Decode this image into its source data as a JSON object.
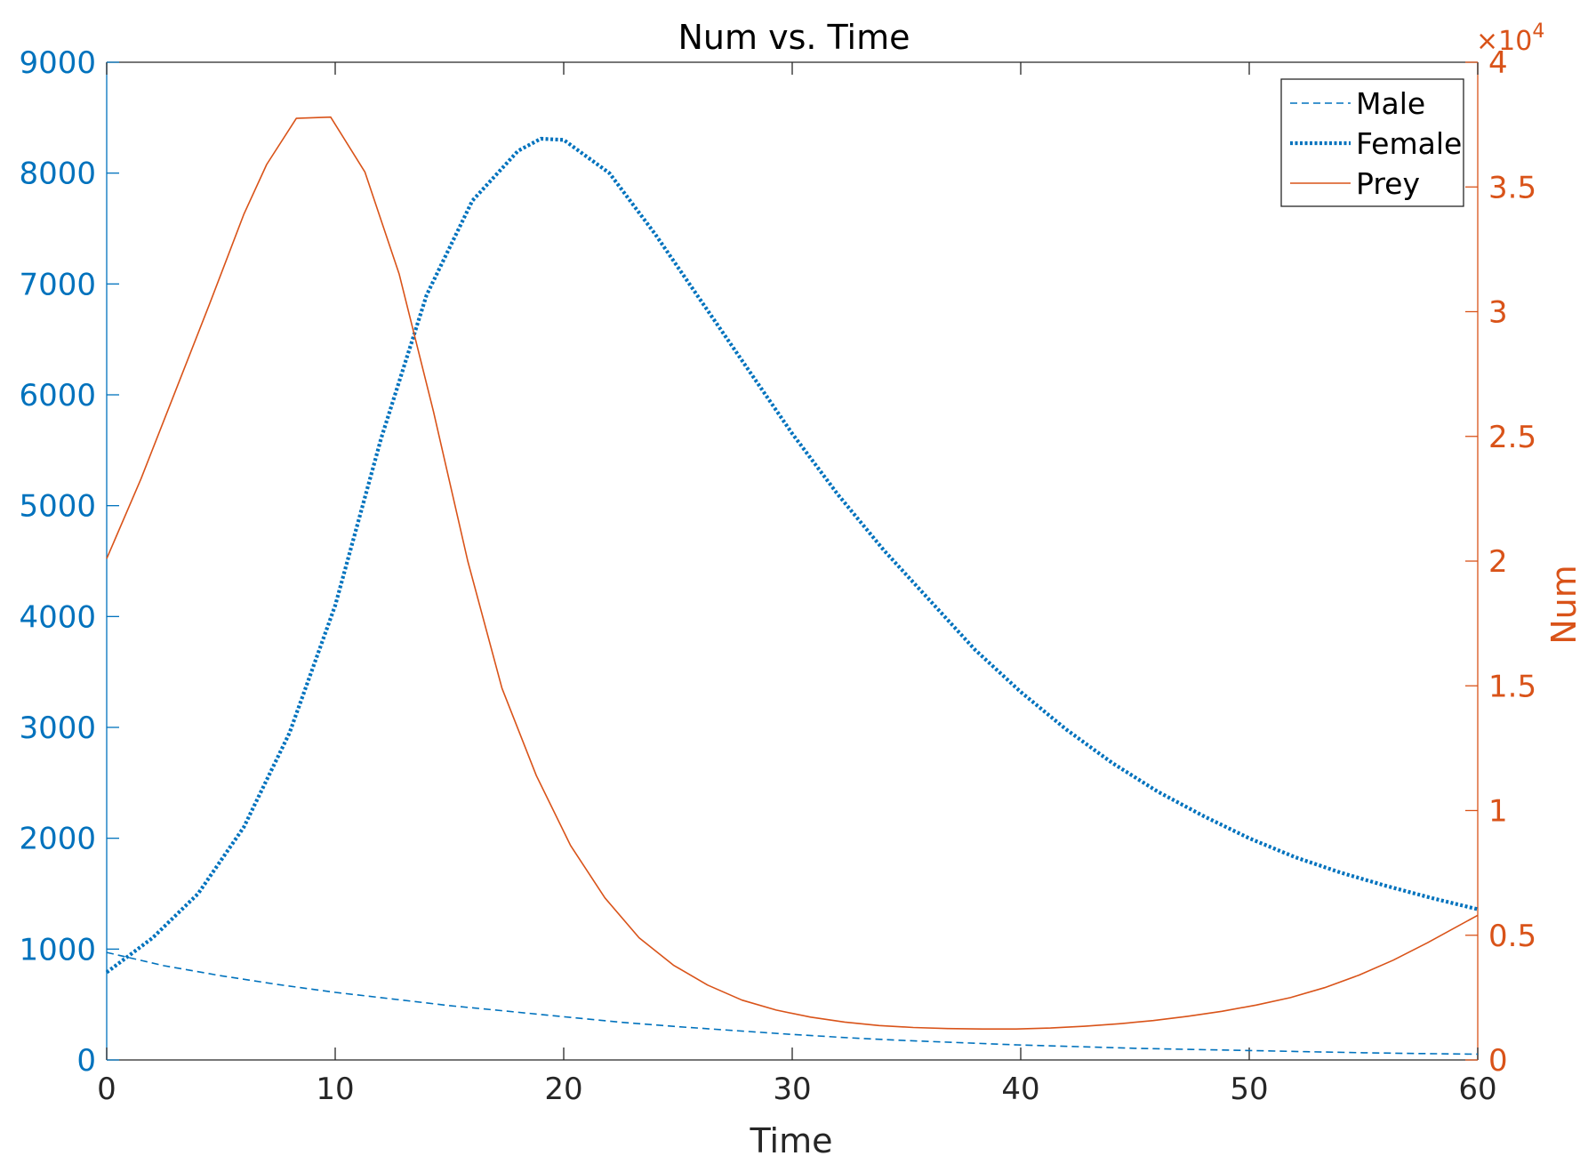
{
  "chart_data": {
    "type": "line",
    "title": "Num vs. Time",
    "xlabel": "Time",
    "ylabel_left": "",
    "ylabel_right": "Num",
    "xlim": [
      0,
      60
    ],
    "ylim_left": [
      0,
      9000
    ],
    "ylim_right": [
      0,
      40000
    ],
    "x_ticks": [
      0,
      10,
      20,
      30,
      40,
      50,
      60
    ],
    "x_tick_labels": [
      "0",
      "10",
      "20",
      "30",
      "40",
      "50",
      "60"
    ],
    "y_left_ticks": [
      0,
      1000,
      2000,
      3000,
      4000,
      5000,
      6000,
      7000,
      8000,
      9000
    ],
    "y_left_tick_labels": [
      "0",
      "1000",
      "2000",
      "3000",
      "4000",
      "5000",
      "6000",
      "7000",
      "8000",
      "9000"
    ],
    "y_right_ticks": [
      0,
      5000,
      10000,
      15000,
      20000,
      25000,
      30000,
      35000,
      40000
    ],
    "y_right_tick_labels": [
      "0",
      "0.5",
      "1",
      "1.5",
      "2",
      "2.5",
      "3",
      "3.5",
      "4"
    ],
    "y_right_exponent_base": "×10",
    "y_right_exponent_power": "4",
    "grid": false,
    "legend_position": "top-right",
    "colors": {
      "left_axis": "#0072BD",
      "right_axis": "#D95319",
      "box": "#262626"
    },
    "series": [
      {
        "name": "Male",
        "axis": "left",
        "style": "dashed",
        "color": "#0072BD",
        "x": [
          0,
          2.5,
          5,
          7.5,
          10,
          12.5,
          15,
          17.5,
          20,
          22.5,
          25,
          27.5,
          30,
          32.5,
          35,
          37.5,
          40,
          42.5,
          45,
          47.5,
          50,
          52.5,
          55,
          57.5,
          60
        ],
        "y": [
          970,
          850,
          760,
          680,
          610,
          550,
          490,
          440,
          390,
          340,
          300,
          265,
          230,
          200,
          175,
          155,
          135,
          120,
          105,
          95,
          85,
          75,
          65,
          58,
          52
        ]
      },
      {
        "name": "Female",
        "axis": "left",
        "style": "dotted",
        "color": "#0072BD",
        "x": [
          0,
          2,
          4,
          6,
          8,
          10,
          12,
          14,
          16,
          18,
          19,
          20,
          22,
          24,
          26,
          28,
          30,
          32,
          34,
          36,
          38,
          40,
          42,
          44,
          46,
          48,
          50,
          52,
          54,
          56,
          58,
          60
        ],
        "y": [
          790,
          1100,
          1500,
          2100,
          2950,
          4100,
          5600,
          6900,
          7750,
          8200,
          8310,
          8300,
          8000,
          7450,
          6850,
          6250,
          5650,
          5100,
          4600,
          4150,
          3700,
          3320,
          2980,
          2680,
          2420,
          2200,
          2000,
          1830,
          1690,
          1570,
          1460,
          1360
        ]
      },
      {
        "name": "Prey",
        "axis": "right",
        "style": "solid",
        "color": "#D95319",
        "x": [
          0,
          1.5,
          3,
          4.5,
          6,
          7,
          8.3,
          9.8,
          11.3,
          12.8,
          14.3,
          15.8,
          17.3,
          18.8,
          20.3,
          21.8,
          23.3,
          24.8,
          26.3,
          27.8,
          29.3,
          30.8,
          32.3,
          33.8,
          35.3,
          36.8,
          38.3,
          39.8,
          41.3,
          42.8,
          44.3,
          45.8,
          47.3,
          48.8,
          50.3,
          51.8,
          53.3,
          54.8,
          56.3,
          57.8,
          60
        ],
        "y": [
          20100,
          23300,
          26800,
          30300,
          33900,
          35900,
          37750,
          37800,
          35600,
          31500,
          26000,
          20000,
          14900,
          11400,
          8600,
          6500,
          4900,
          3800,
          3000,
          2400,
          2000,
          1720,
          1520,
          1380,
          1300,
          1260,
          1240,
          1240,
          1280,
          1350,
          1450,
          1580,
          1750,
          1950,
          2200,
          2500,
          2900,
          3400,
          4000,
          4700,
          5800
        ]
      }
    ]
  }
}
